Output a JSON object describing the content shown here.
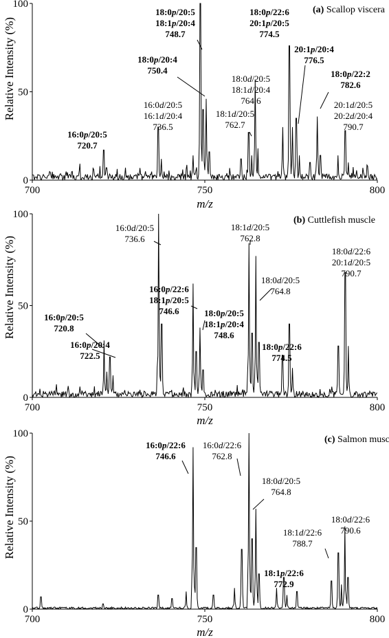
{
  "chart_data": [
    {
      "type": "line",
      "title": "(a) Scallop viscera",
      "title_tag": "(a)",
      "title_name": "Scallop viscera",
      "xlabel": "m/z",
      "ylabel": "Relative Intensity (%)",
      "xlim": [
        700,
        800
      ],
      "ylim": [
        0,
        100
      ],
      "x_ticks": [
        700,
        750,
        800
      ],
      "y_ticks": [
        0,
        50,
        100
      ],
      "grid": false,
      "series": [
        {
          "peaks": [
            {
              "x": 720.7,
              "y": 17
            },
            {
              "x": 721.5,
              "y": 7
            },
            {
              "x": 736.5,
              "y": 30
            },
            {
              "x": 737.4,
              "y": 12
            },
            {
              "x": 746.6,
              "y": 14
            },
            {
              "x": 748.7,
              "y": 100
            },
            {
              "x": 749.5,
              "y": 40
            },
            {
              "x": 750.4,
              "y": 46
            },
            {
              "x": 751.3,
              "y": 16
            },
            {
              "x": 760.5,
              "y": 12
            },
            {
              "x": 762.7,
              "y": 27
            },
            {
              "x": 763.6,
              "y": 14
            },
            {
              "x": 764.6,
              "y": 57
            },
            {
              "x": 765.4,
              "y": 18
            },
            {
              "x": 772.6,
              "y": 30
            },
            {
              "x": 774.5,
              "y": 76
            },
            {
              "x": 775.4,
              "y": 30
            },
            {
              "x": 776.5,
              "y": 35
            },
            {
              "x": 777.4,
              "y": 14
            },
            {
              "x": 780.5,
              "y": 10
            },
            {
              "x": 782.6,
              "y": 36
            },
            {
              "x": 783.5,
              "y": 14
            },
            {
              "x": 788.6,
              "y": 14
            },
            {
              "x": 790.7,
              "y": 28
            },
            {
              "x": 791.6,
              "y": 10
            }
          ]
        }
      ],
      "annotations": [
        {
          "lines": [
            "16:0p/20:5",
            "720.7"
          ],
          "bold": true
        },
        {
          "lines": [
            "16:0d/20:5",
            "16:1d/20:4",
            "736.5"
          ],
          "bold": false
        },
        {
          "lines": [
            "18:0p/20:4",
            "750.4"
          ],
          "bold": true
        },
        {
          "lines": [
            "18:0p/20:5",
            "18:1p/20:4",
            "748.7"
          ],
          "bold": true
        },
        {
          "lines": [
            "18:0d/20:5",
            "18:1d/20:4",
            "764.6"
          ],
          "bold": false
        },
        {
          "lines": [
            "18:1d/20:5",
            "762.7"
          ],
          "bold": false
        },
        {
          "lines": [
            "18:0p/22:6",
            "20:1p/20:5",
            "774.5"
          ],
          "bold": true
        },
        {
          "lines": [
            "20:1p/20:4",
            "776.5"
          ],
          "bold": true
        },
        {
          "lines": [
            "18:0p/22:2",
            "782.6"
          ],
          "bold": true
        },
        {
          "lines": [
            "20:1d/20:5",
            "20:2d/20:4",
            "790.7"
          ],
          "bold": false
        }
      ]
    },
    {
      "type": "line",
      "title": "(b) Cuttlefish muscle",
      "title_tag": "(b)",
      "title_name": "Cuttlefish muscle",
      "xlabel": "m/z",
      "ylabel": "Relative Intensity (%)",
      "xlim": [
        700,
        800
      ],
      "ylim": [
        0,
        100
      ],
      "x_ticks": [
        700,
        750,
        800
      ],
      "y_ticks": [
        0,
        50,
        100
      ],
      "grid": false,
      "series": [
        {
          "peaks": [
            {
              "x": 720.8,
              "y": 31
            },
            {
              "x": 721.6,
              "y": 14
            },
            {
              "x": 722.5,
              "y": 22
            },
            {
              "x": 723.4,
              "y": 12
            },
            {
              "x": 736.6,
              "y": 100
            },
            {
              "x": 737.5,
              "y": 40
            },
            {
              "x": 746.6,
              "y": 62
            },
            {
              "x": 747.5,
              "y": 25
            },
            {
              "x": 748.6,
              "y": 38
            },
            {
              "x": 749.5,
              "y": 15
            },
            {
              "x": 762.8,
              "y": 84
            },
            {
              "x": 763.7,
              "y": 35
            },
            {
              "x": 764.8,
              "y": 77
            },
            {
              "x": 765.7,
              "y": 30
            },
            {
              "x": 772.5,
              "y": 23
            },
            {
              "x": 774.5,
              "y": 40
            },
            {
              "x": 775.4,
              "y": 16
            },
            {
              "x": 788.7,
              "y": 28
            },
            {
              "x": 790.7,
              "y": 68
            },
            {
              "x": 791.6,
              "y": 28
            }
          ]
        }
      ],
      "annotations": [
        {
          "lines": [
            "16:0p/20:5",
            "720.8"
          ],
          "bold": true
        },
        {
          "lines": [
            "16:0p/20:4",
            "722.5"
          ],
          "bold": true
        },
        {
          "lines": [
            "16:0d/20:5",
            "736.6"
          ],
          "bold": false
        },
        {
          "lines": [
            "16:0p/22:6",
            "18:1p/20:5",
            "746.6"
          ],
          "bold": true
        },
        {
          "lines": [
            "18:0p/20:5",
            "18:1p/20:4",
            "748.6"
          ],
          "bold": true
        },
        {
          "lines": [
            "18:1d/20:5",
            "762.8"
          ],
          "bold": false
        },
        {
          "lines": [
            "18:0d/20:5",
            "764.8"
          ],
          "bold": false
        },
        {
          "lines": [
            "18:0p/22:6",
            "774.5"
          ],
          "bold": true
        },
        {
          "lines": [
            "18:0d/22:6",
            "20:1d/20:5",
            "790.7"
          ],
          "bold": false
        }
      ]
    },
    {
      "type": "line",
      "title": "(c) Salmon muscle",
      "title_tag": "(c)",
      "title_name": "Salmon muscle",
      "xlabel": "m/z",
      "ylabel": "Relative Intensity (%)",
      "xlim": [
        700,
        800
      ],
      "ylim": [
        0,
        100
      ],
      "x_ticks": [
        700,
        750,
        800
      ],
      "y_ticks": [
        0,
        50,
        100
      ],
      "grid": false,
      "series": [
        {
          "peaks": [
            {
              "x": 702.5,
              "y": 7
            },
            {
              "x": 720.5,
              "y": 3
            },
            {
              "x": 736.5,
              "y": 8
            },
            {
              "x": 740.5,
              "y": 6
            },
            {
              "x": 744.6,
              "y": 10
            },
            {
              "x": 746.6,
              "y": 92
            },
            {
              "x": 747.5,
              "y": 35
            },
            {
              "x": 752.5,
              "y": 8
            },
            {
              "x": 758.6,
              "y": 12
            },
            {
              "x": 760.7,
              "y": 34
            },
            {
              "x": 762.8,
              "y": 100
            },
            {
              "x": 763.7,
              "y": 40
            },
            {
              "x": 764.8,
              "y": 57
            },
            {
              "x": 765.7,
              "y": 20
            },
            {
              "x": 770.8,
              "y": 12
            },
            {
              "x": 772.9,
              "y": 18
            },
            {
              "x": 773.8,
              "y": 8
            },
            {
              "x": 776.7,
              "y": 10
            },
            {
              "x": 786.7,
              "y": 16
            },
            {
              "x": 788.7,
              "y": 32
            },
            {
              "x": 789.6,
              "y": 14
            },
            {
              "x": 790.6,
              "y": 47
            },
            {
              "x": 791.5,
              "y": 18
            }
          ]
        }
      ],
      "annotations": [
        {
          "lines": [
            "16:0p/22:6",
            "746.6"
          ],
          "bold": true
        },
        {
          "lines": [
            "16:0d/22:6",
            "762.8"
          ],
          "bold": false
        },
        {
          "lines": [
            "18:0d/20:5",
            "764.8"
          ],
          "bold": false
        },
        {
          "lines": [
            "18:1p/22:6",
            "772.9"
          ],
          "bold": true
        },
        {
          "lines": [
            "18:1d/22:6",
            "788.7"
          ],
          "bold": false
        },
        {
          "lines": [
            "18:0d/22:6",
            "790.6"
          ],
          "bold": false
        }
      ]
    }
  ]
}
